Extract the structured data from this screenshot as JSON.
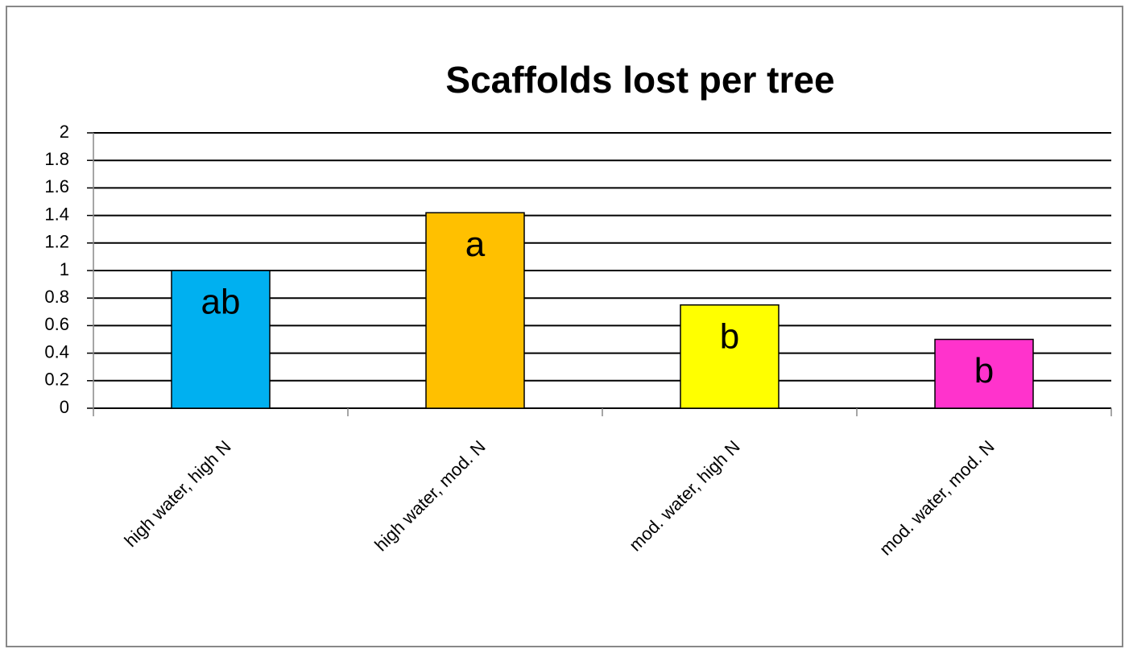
{
  "chart_data": {
    "type": "bar",
    "title": "Scaffolds lost per tree",
    "categories": [
      "high water, high N",
      "high water, mod. N",
      "mod. water, high N",
      "mod. water, mod. N"
    ],
    "values": [
      1.0,
      1.42,
      0.75,
      0.5
    ],
    "colors": [
      "#00b0f0",
      "#ffc000",
      "#ffff00",
      "#ff33cc"
    ],
    "annotations": [
      "ab",
      "a",
      "b",
      "b"
    ],
    "ylim": [
      0,
      2
    ],
    "yticks": [
      0,
      0.2,
      0.4,
      0.6,
      0.8,
      1,
      1.2,
      1.4,
      1.6,
      1.8,
      2
    ],
    "grid": true
  }
}
